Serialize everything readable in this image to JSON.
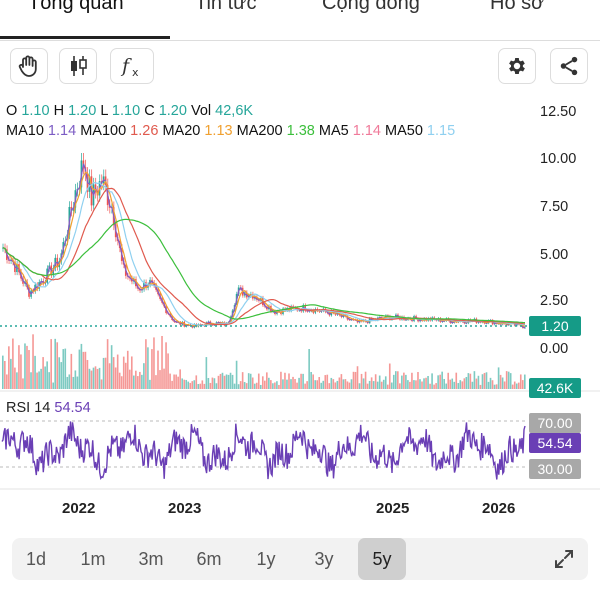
{
  "tabs": [
    {
      "label": "Tổng quan"
    },
    {
      "label": "Tin tức"
    },
    {
      "label": "Cộng đồng"
    },
    {
      "label": "Hồ sơ"
    }
  ],
  "ohlc": {
    "o_label": "O",
    "o": "1.10",
    "h_label": "H",
    "h": "1.20",
    "l_label": "L",
    "l": "1.10",
    "c_label": "C",
    "c": "1.20",
    "vol_label": "Vol",
    "vol": "42,6K"
  },
  "ma_legend": [
    {
      "label": "MA10",
      "value": "1.14",
      "color": "#7c5cc4"
    },
    {
      "label": "MA100",
      "value": "1.26",
      "color": "#e05a4e"
    },
    {
      "label": "MA20",
      "value": "1.13",
      "color": "#f0a030"
    },
    {
      "label": "MA200",
      "value": "1.38",
      "color": "#3cbf3c"
    },
    {
      "label": "MA5",
      "value": "1.14",
      "color": "#f07a9a"
    },
    {
      "label": "MA50",
      "value": "1.15",
      "color": "#8fd0f0"
    }
  ],
  "price_axis": [
    "12.50",
    "10.00",
    "7.50",
    "5.00",
    "2.50",
    "0.00"
  ],
  "current_price_tag": "1.20",
  "volume_tag": "42.6K",
  "rsi": {
    "title": "RSI 14",
    "value": "54.54",
    "upper": "70.00",
    "lower": "30.00",
    "current": "54.54"
  },
  "years": [
    "2022",
    "2023",
    "2025",
    "2026"
  ],
  "ranges": [
    {
      "label": "1d",
      "selected": false
    },
    {
      "label": "1m",
      "selected": false
    },
    {
      "label": "3m",
      "selected": false
    },
    {
      "label": "6m",
      "selected": false
    },
    {
      "label": "1y",
      "selected": false
    },
    {
      "label": "3y",
      "selected": false
    },
    {
      "label": "5y",
      "selected": true
    }
  ],
  "colors": {
    "up": "#26a69a",
    "down": "#ef5350",
    "rsi": "#6a3fb5",
    "dotted": "#26a69a",
    "volume_tag": "#159b87"
  },
  "icons": {
    "hand": "hand-icon",
    "candles": "candlestick-icon",
    "fx": "function-icon",
    "gear": "gear-icon",
    "share": "share-icon",
    "expand": "expand-icon"
  },
  "chart_data": {
    "type": "line",
    "price_range": [
      0,
      12.5
    ],
    "rsi_levels": [
      30,
      70
    ],
    "last_close": 1.2,
    "last_volume": "42.6K",
    "last_rsi": 54.54
  }
}
